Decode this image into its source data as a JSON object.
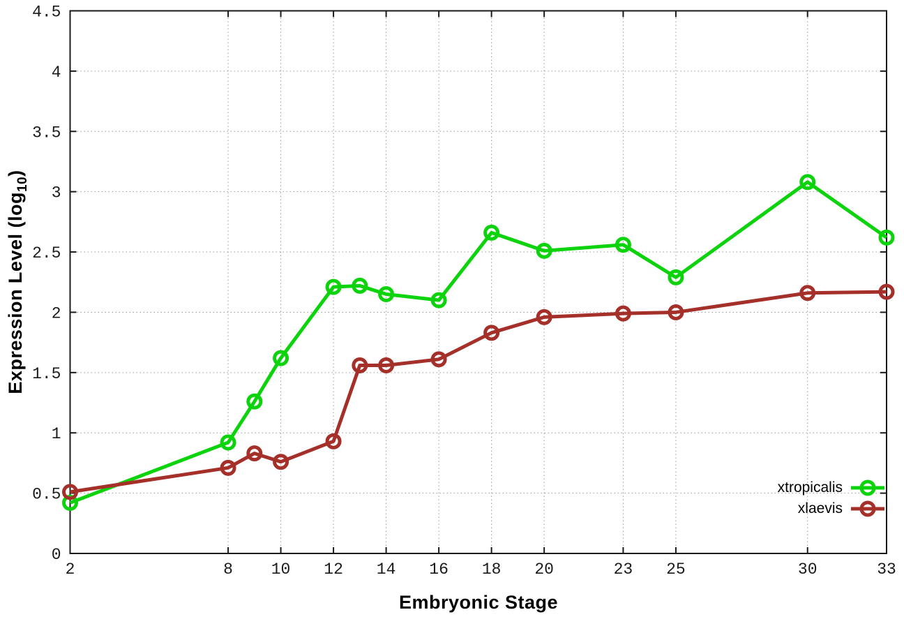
{
  "chart_data": {
    "type": "line",
    "xlabel": "Embryonic Stage",
    "ylabel": {
      "prefix": "Expression Level (log",
      "sub": "10",
      "suffix": ")"
    },
    "xlim": [
      2,
      33
    ],
    "ylim": [
      0,
      4.5
    ],
    "grid": true,
    "legend_position": "bottom-right",
    "x_ticks": [
      "2",
      "8",
      "10",
      "12",
      "14",
      "16",
      "18",
      "20",
      "23",
      "25",
      "30",
      "33"
    ],
    "y_ticks": [
      "0",
      "0.5",
      "1",
      "1.5",
      "2",
      "2.5",
      "3",
      "3.5",
      "4",
      "4.5"
    ],
    "x": [
      2,
      8,
      9,
      10,
      12,
      13,
      14,
      16,
      18,
      20,
      23,
      25,
      30,
      33
    ],
    "series": [
      {
        "name": "xtropicalis",
        "color": "#0cd30c",
        "values": [
          0.42,
          0.92,
          1.26,
          1.62,
          2.21,
          2.22,
          2.15,
          2.1,
          2.66,
          2.51,
          2.56,
          2.29,
          3.08,
          2.62
        ]
      },
      {
        "name": "xlaevis",
        "color": "#a5302a",
        "values": [
          0.51,
          0.71,
          0.83,
          0.76,
          0.93,
          1.56,
          1.56,
          1.61,
          1.83,
          1.96,
          1.99,
          2.0,
          2.16,
          2.17
        ]
      }
    ],
    "colors": {
      "grid": "#9a9a9a",
      "axis": "#1a1a1a",
      "tick_text": "#1a1a1a"
    }
  }
}
